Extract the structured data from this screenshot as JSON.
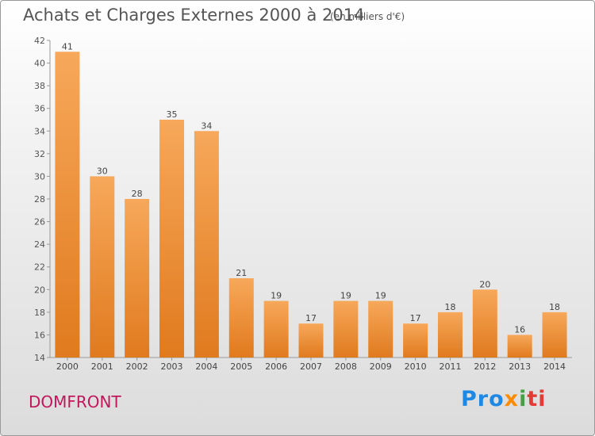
{
  "header": {
    "title": "Achats et Charges Externes 2000 à 2014",
    "subtitle": "(en milliers d'€)"
  },
  "footer": {
    "town": "DOMFRONT",
    "logo": {
      "p1": "Pro",
      "p2": "x",
      "p3": "i",
      "p4": "ti"
    }
  },
  "chart_data": {
    "type": "bar",
    "title": "Achats et Charges Externes 2000 à 2014",
    "subtitle": "(en milliers d'€)",
    "xlabel": "",
    "ylabel": "",
    "categories": [
      "2000",
      "2001",
      "2002",
      "2003",
      "2004",
      "2005",
      "2006",
      "2007",
      "2008",
      "2009",
      "2010",
      "2011",
      "2012",
      "2013",
      "2014"
    ],
    "values": [
      41,
      30,
      28,
      35,
      34,
      21,
      19,
      17,
      19,
      19,
      17,
      18,
      20,
      16,
      18
    ],
    "ylim": [
      14,
      42
    ],
    "yticks": [
      14,
      16,
      18,
      20,
      22,
      24,
      26,
      28,
      30,
      32,
      34,
      36,
      38,
      40,
      42
    ],
    "grid": false,
    "bar_color": "#f0882e",
    "bar_color_top": "#f7a85a"
  }
}
